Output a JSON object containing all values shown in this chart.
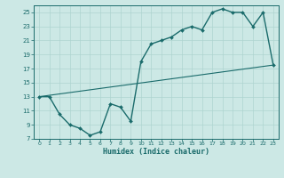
{
  "xlabel": "Humidex (Indice chaleur)",
  "bg_color": "#cce8e5",
  "line_color": "#1a6b6b",
  "grid_color": "#aed4d0",
  "xlim": [
    -0.5,
    23.5
  ],
  "ylim": [
    7,
    26
  ],
  "xticks": [
    0,
    1,
    2,
    3,
    4,
    5,
    6,
    7,
    8,
    9,
    10,
    11,
    12,
    13,
    14,
    15,
    16,
    17,
    18,
    19,
    20,
    21,
    22,
    23
  ],
  "yticks": [
    7,
    9,
    11,
    13,
    15,
    17,
    19,
    21,
    23,
    25
  ],
  "line1_x": [
    0,
    1,
    2,
    3,
    4,
    5,
    6,
    7,
    8,
    9,
    10,
    11,
    12,
    13,
    14,
    15,
    16,
    17,
    18,
    19,
    20,
    21,
    22,
    23
  ],
  "line1_y": [
    13,
    13,
    10.5,
    9,
    8.5,
    7.5,
    8,
    12,
    11.5,
    9.5,
    18,
    20.5,
    21,
    21.5,
    22.5,
    23,
    22.5,
    25,
    25.5,
    25,
    25,
    23,
    25,
    17.5
  ],
  "line2_x": [
    0,
    23
  ],
  "line2_y": [
    13,
    17.5
  ]
}
